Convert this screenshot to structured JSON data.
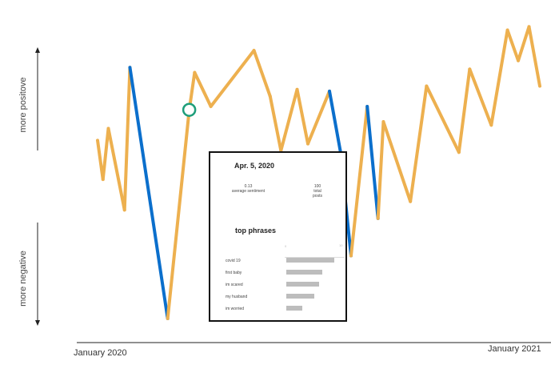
{
  "chart_data": {
    "type": "line",
    "x_start": "January 2020",
    "x_end": "January 2021",
    "ylabel_top": "more positove",
    "ylabel_bottom": "more negative",
    "ylim": [
      -1,
      1
    ],
    "series_colors": {
      "positive_segments": "#EDB04F",
      "negative_segments": "#0B6FCC",
      "highlight": "#1E9E7A"
    },
    "points": [
      {
        "x": 0,
        "y": 0.05
      },
      {
        "x": 2,
        "y": -0.18
      },
      {
        "x": 4,
        "y": 0.12
      },
      {
        "x": 10,
        "y": -0.36
      },
      {
        "x": 12,
        "y": 0.48
      },
      {
        "x": 26,
        "y": -1.0
      },
      {
        "x": 34,
        "y": 0.23
      },
      {
        "x": 36,
        "y": 0.45
      },
      {
        "x": 42,
        "y": 0.25
      },
      {
        "x": 58,
        "y": 0.58
      },
      {
        "x": 64,
        "y": 0.31
      },
      {
        "x": 68,
        "y": -0.01
      },
      {
        "x": 74,
        "y": 0.35
      },
      {
        "x": 78,
        "y": 0.03
      },
      {
        "x": 86,
        "y": 0.34
      },
      {
        "x": 90,
        "y": -0.01
      },
      {
        "x": 94,
        "y": -0.63
      },
      {
        "x": 100,
        "y": 0.25
      },
      {
        "x": 104,
        "y": -0.41
      },
      {
        "x": 106,
        "y": 0.16
      },
      {
        "x": 116,
        "y": -0.31
      },
      {
        "x": 122,
        "y": 0.37
      },
      {
        "x": 134,
        "y": -0.02
      },
      {
        "x": 138,
        "y": 0.47
      },
      {
        "x": 146,
        "y": 0.14
      },
      {
        "x": 152,
        "y": 0.7
      },
      {
        "x": 156,
        "y": 0.52
      },
      {
        "x": 160,
        "y": 0.72
      },
      {
        "x": 164,
        "y": 0.37
      }
    ],
    "negative_segments": [
      [
        4,
        5
      ],
      [
        14,
        16
      ],
      [
        17,
        18
      ]
    ],
    "highlight_index": 6
  },
  "tooltip": {
    "date": "Apr. 5,  2020",
    "avg_value": "0.13",
    "avg_label": "average sentiment",
    "posts_value": "100",
    "posts_label_1": "total",
    "posts_label_2": "posts",
    "phrases_title": "top phrases",
    "axis_min": "0",
    "axis_max": "10",
    "phrases": [
      {
        "label": "covid 19",
        "value": 10
      },
      {
        "label": "first baby",
        "value": 7.5
      },
      {
        "label": "im scared",
        "value": 6.8
      },
      {
        "label": "my husband",
        "value": 5.9
      },
      {
        "label": "im worried",
        "value": 3.4
      }
    ]
  }
}
